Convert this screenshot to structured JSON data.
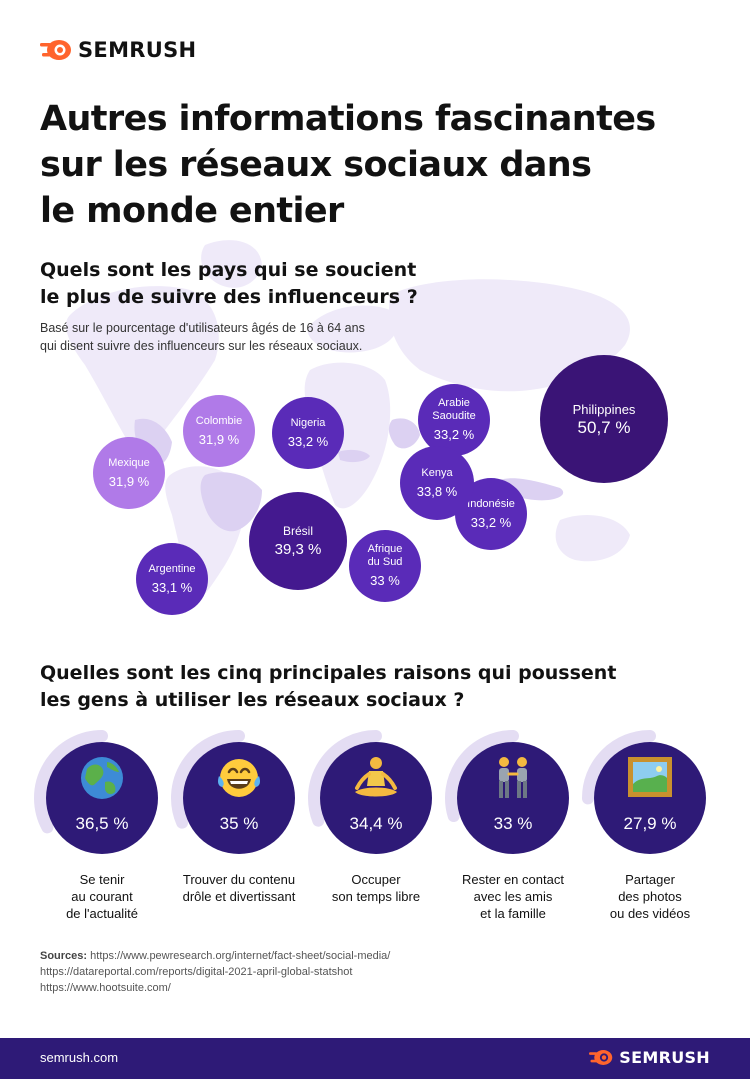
{
  "brand": {
    "name": "SEMRUSH",
    "accent": "#ff642d"
  },
  "title_lines": [
    "Autres informations fascinantes",
    "sur les réseaux sociaux dans",
    "le monde entier"
  ],
  "influencers": {
    "question_lines": [
      "Quels sont les pays qui se soucient",
      "le plus de suivre des influenceurs ?"
    ],
    "subtitle_lines": [
      "Basé sur le pourcentage d'utilisateurs âgés de 16 à 64 ans",
      "qui disent suivre des influenceurs sur les réseaux sociaux."
    ]
  },
  "reasons": {
    "question_lines": [
      "Quelles sont les cinq principales raisons qui poussent",
      "les gens à utiliser les réseaux sociaux ?"
    ]
  },
  "chart_data": [
    {
      "type": "bubble",
      "series": [
        {
          "name_lines": [
            "Mexique"
          ],
          "value": 31.9,
          "label": "31,9 %",
          "color": "#b07ae8"
        },
        {
          "name_lines": [
            "Colombie"
          ],
          "value": 31.9,
          "label": "31,9 %",
          "color": "#b07ae8"
        },
        {
          "name_lines": [
            "Argentine"
          ],
          "value": 33.1,
          "label": "33,1 %",
          "color": "#5a2bb8"
        },
        {
          "name_lines": [
            "Nigeria"
          ],
          "value": 33.2,
          "label": "33,2 %",
          "color": "#5a2bb8"
        },
        {
          "name_lines": [
            "Arabie",
            "Saoudite"
          ],
          "value": 33.2,
          "label": "33,2 %",
          "color": "#5a2bb8"
        },
        {
          "name_lines": [
            "Indonésie"
          ],
          "value": 33.2,
          "label": "33,2 %",
          "color": "#5a2bb8"
        },
        {
          "name_lines": [
            "Afrique",
            "du Sud"
          ],
          "value": 33,
          "label": "33 %",
          "color": "#5a2bb8"
        },
        {
          "name_lines": [
            "Kenya"
          ],
          "value": 33.8,
          "label": "33,8 %",
          "color": "#5a2bb8"
        },
        {
          "name_lines": [
            "Brésil"
          ],
          "value": 39.3,
          "label": "39,3 %",
          "color": "#44198f"
        },
        {
          "name_lines": [
            "Philippines"
          ],
          "value": 50.7,
          "label": "50,7 %",
          "color": "#3a1476"
        }
      ]
    },
    {
      "type": "donut",
      "series": [
        {
          "value": 36.5,
          "label": "36,5 %",
          "icon": "earth-globe-icon",
          "desc_lines": [
            "Se tenir",
            "au courant",
            "de l'actualité"
          ]
        },
        {
          "value": 35,
          "label": "35 %",
          "icon": "laughing-tears-face-icon",
          "desc_lines": [
            "Trouver du contenu",
            "drôle et divertissant"
          ]
        },
        {
          "value": 34.4,
          "label": "34,4 %",
          "icon": "meditating-person-icon",
          "desc_lines": [
            "Occuper",
            "son temps libre"
          ]
        },
        {
          "value": 33,
          "label": "33 %",
          "icon": "two-people-holding-hands-icon",
          "desc_lines": [
            "Rester en contact",
            "avec les amis",
            "et la famille"
          ]
        },
        {
          "value": 27.9,
          "label": "27,9 %",
          "icon": "framed-picture-icon",
          "desc_lines": [
            "Partager",
            "des photos",
            "ou des vidéos"
          ]
        }
      ]
    }
  ],
  "sources": {
    "label": "Sources:",
    "urls": [
      "https://www.pewresearch.org/internet/fact-sheet/social-media/",
      "https://datareportal.com/reports/digital-2021-april-global-statshot",
      "https://www.hootsuite.com/"
    ]
  },
  "footer": {
    "site": "semrush.com"
  }
}
